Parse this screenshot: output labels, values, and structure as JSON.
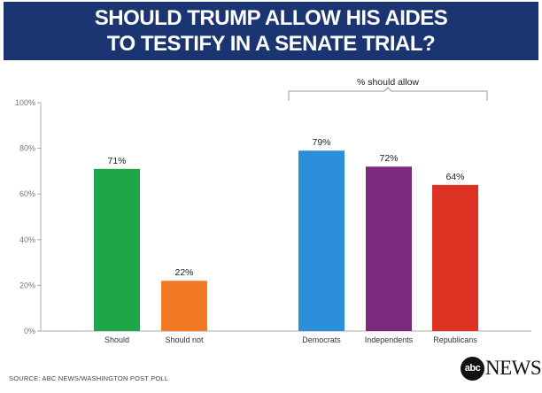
{
  "header": {
    "title_line1": "SHOULD TRUMP ALLOW HIS AIDES",
    "title_line2": "TO TESTIFY IN A SENATE TRIAL?"
  },
  "source": "SOURCE: ABC NEWS/WASHINGTON POST POLL",
  "logo": {
    "abc": "abc",
    "news": "NEWS"
  },
  "chart_data": {
    "type": "bar",
    "title": "SHOULD TRUMP ALLOW HIS AIDES TO TESTIFY IN A SENATE TRIAL?",
    "ylim": [
      0,
      100
    ],
    "yticks": [
      "0%",
      "20%",
      "40%",
      "60%",
      "80%",
      "100%"
    ],
    "grid": false,
    "group_label": "% should allow",
    "bars": [
      {
        "category": "Should",
        "value": 71,
        "label": "71%",
        "color": "#1ea547"
      },
      {
        "category": "Should not",
        "value": 22,
        "label": "22%",
        "color": "#f27a24"
      },
      {
        "category": "Democrats",
        "value": 79,
        "label": "79%",
        "color": "#2b8fd9"
      },
      {
        "category": "Independents",
        "value": 72,
        "label": "72%",
        "color": "#7a2a7d"
      },
      {
        "category": "Republicans",
        "value": 64,
        "label": "64%",
        "color": "#dd3224"
      }
    ]
  }
}
